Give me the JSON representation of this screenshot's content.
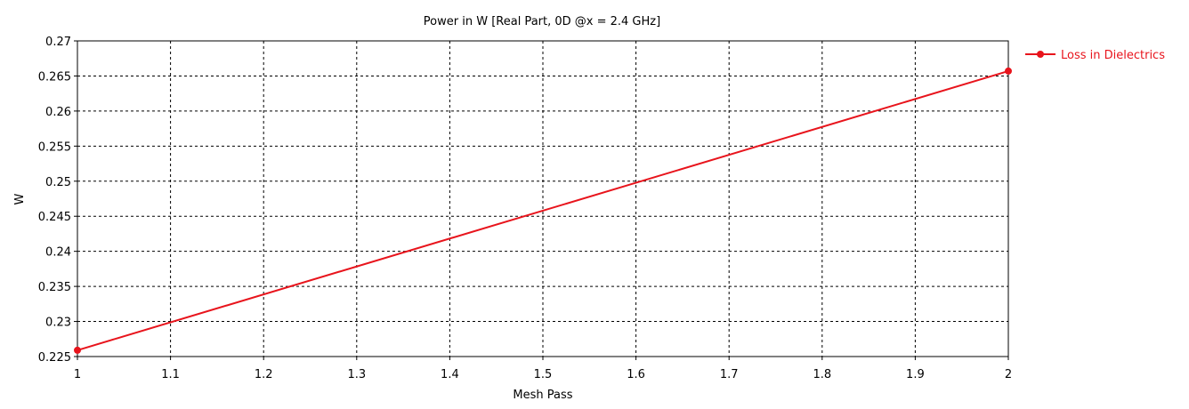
{
  "chart_data": {
    "type": "line",
    "title": "Power in W [Real Part, 0D @x = 2.4 GHz]",
    "xlabel": "Mesh Pass",
    "ylabel": "W",
    "xlim": [
      1,
      2
    ],
    "ylim": [
      0.225,
      0.27
    ],
    "x_ticks": [
      1,
      1.1,
      1.2,
      1.3,
      1.4,
      1.5,
      1.6,
      1.7,
      1.8,
      1.9,
      2
    ],
    "x_tick_labels": [
      "1",
      "1.1",
      "1.2",
      "1.3",
      "1.4",
      "1.5",
      "1.6",
      "1.7",
      "1.8",
      "1.9",
      "2"
    ],
    "y_ticks": [
      0.225,
      0.23,
      0.235,
      0.24,
      0.245,
      0.25,
      0.255,
      0.26,
      0.265,
      0.27
    ],
    "y_tick_labels": [
      "0.225",
      "0.23",
      "0.235",
      "0.24",
      "0.245",
      "0.25",
      "0.255",
      "0.26",
      "0.265",
      "0.27"
    ],
    "grid": true,
    "legend_position": "top-right",
    "series": [
      {
        "name": "Loss in Dielectrics",
        "color": "#e8141c",
        "x": [
          1,
          2
        ],
        "values": [
          0.2259,
          0.2657
        ]
      }
    ]
  }
}
